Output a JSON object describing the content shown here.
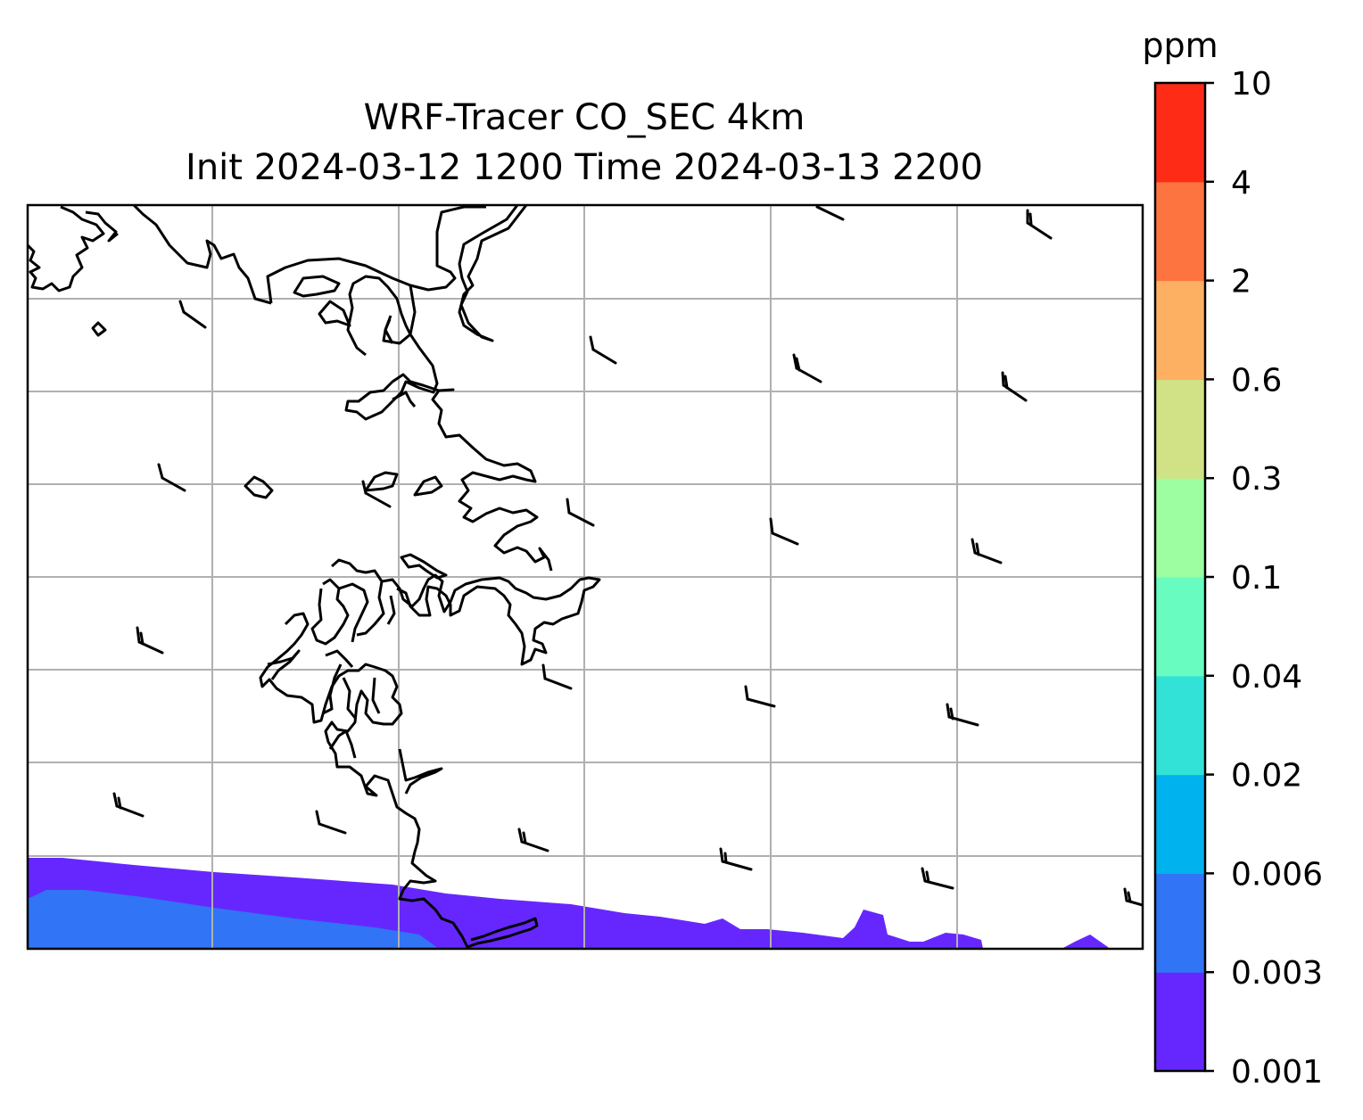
{
  "title": {
    "line1": "WRF-Tracer CO_SEC 4km",
    "line2": "Init 2024-03-12 1200 Time 2024-03-13 2200"
  },
  "colorbar": {
    "units": "ppm",
    "levels": [
      "0.001",
      "0.003",
      "0.006",
      "0.02",
      "0.04",
      "0.1",
      "0.3",
      "0.6",
      "2",
      "4",
      "10"
    ],
    "colors": [
      "#6627ff",
      "#3174f5",
      "#00b2ee",
      "#32e2d6",
      "#68fcc0",
      "#9cfea0",
      "#d0e285",
      "#feb062",
      "#fe7441",
      "#fe2b16"
    ]
  },
  "map": {
    "gridlines": true,
    "field": "CO_SEC tracer concentration",
    "wind_barbs": true
  }
}
